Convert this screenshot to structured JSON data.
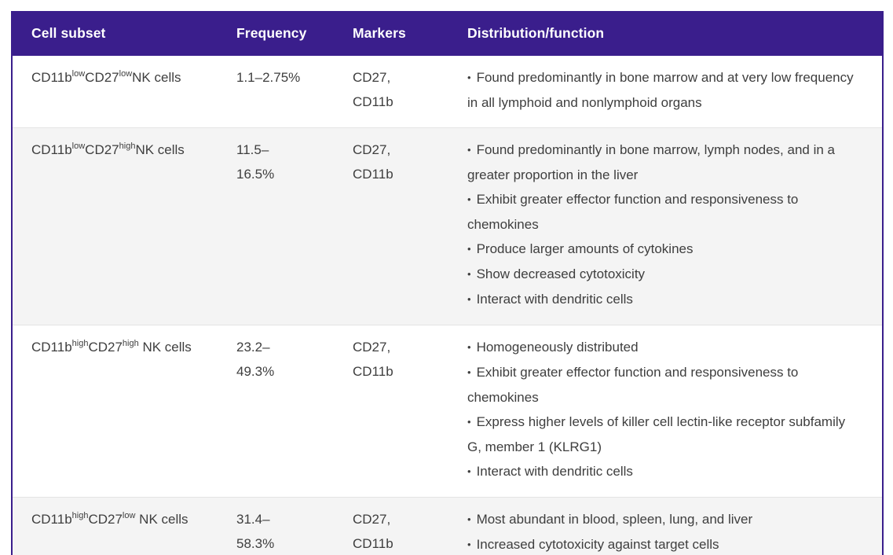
{
  "table": {
    "columns": [
      "Cell subset",
      "Frequency",
      "Markers",
      "Distribution/function"
    ],
    "rows": [
      {
        "subset": [
          {
            "t": "CD11b"
          },
          {
            "t": "low",
            "sup": true
          },
          {
            "t": "CD27"
          },
          {
            "t": "low",
            "sup": true
          },
          {
            "t": "NK cells"
          }
        ],
        "frequency": "1.1–2.75%",
        "markers": "CD27,\nCD11b",
        "distribution": [
          "Found predominantly in bone marrow and at very low frequency in all lymphoid and nonlymphoid organs"
        ]
      },
      {
        "subset": [
          {
            "t": "CD11b"
          },
          {
            "t": "low",
            "sup": true
          },
          {
            "t": "CD27"
          },
          {
            "t": "high",
            "sup": true
          },
          {
            "t": "NK cells"
          }
        ],
        "frequency": "11.5–\n16.5%",
        "markers": "CD27,\nCD11b",
        "distribution": [
          "Found predominantly in bone marrow, lymph nodes, and in a greater proportion in the liver",
          "Exhibit greater effector function and responsiveness to chemokines",
          "Produce larger amounts of cytokines",
          "Show decreased cytotoxicity",
          "Interact with dendritic cells"
        ]
      },
      {
        "subset": [
          {
            "t": "CD11b"
          },
          {
            "t": "high",
            "sup": true
          },
          {
            "t": "CD27"
          },
          {
            "t": "high",
            "sup": true
          },
          {
            "t": " NK cells"
          }
        ],
        "frequency": "23.2–\n49.3%",
        "markers": "CD27,\nCD11b",
        "distribution": [
          "Homogeneously distributed",
          "Exhibit greater effector function and responsiveness to chemokines",
          "Express higher levels of killer cell lectin-like receptor subfamily G, member 1 (KLRG1)",
          "Interact with dendritic cells"
        ]
      },
      {
        "subset": [
          {
            "t": "CD11b"
          },
          {
            "t": "high",
            "sup": true
          },
          {
            "t": "CD27"
          },
          {
            "t": "low",
            "sup": true
          },
          {
            "t": " NK cells"
          }
        ],
        "frequency": "31.4–\n58.3%",
        "markers": "CD27,\nCD11b",
        "distribution": [
          "Most abundant in blood, spleen, lung, and liver",
          "Increased cytotoxicity against target cells"
        ]
      }
    ]
  },
  "colors": {
    "header_bg": "#3a1e8c",
    "header_text": "#ffffff",
    "row_alt_bg": "#f4f4f4",
    "body_text": "#3e3e3e",
    "table_border": "#3a1e8c"
  }
}
